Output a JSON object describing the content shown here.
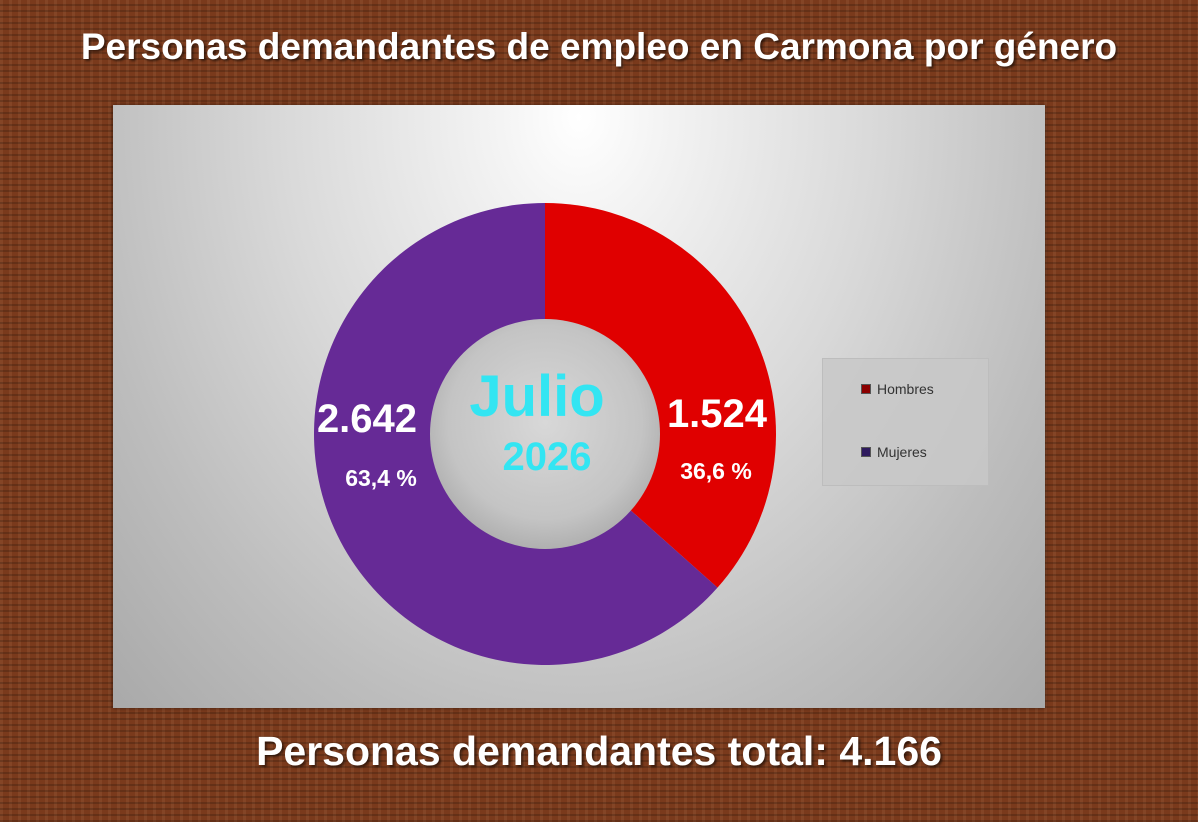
{
  "title": "Personas demandantes de empleo en Carmona por género",
  "center_label": {
    "month": "Julio",
    "year": "2026"
  },
  "footer": "Personas  demandantes total: 4.166",
  "chart_data": {
    "type": "pie",
    "donut": true,
    "title": "Personas demandantes de empleo en Carmona por género",
    "legend_position": "right",
    "slices": [
      {
        "name": "Hombres",
        "value": 1524,
        "value_label": "1.524",
        "percent_label": "36,6 %",
        "color": "#e00000",
        "legend_color": "#8b0000"
      },
      {
        "name": "Mujeres",
        "value": 2642,
        "value_label": "2.642",
        "percent_label": "63,4 %",
        "color": "#662a96",
        "legend_color": "#2e1a5e"
      }
    ]
  }
}
